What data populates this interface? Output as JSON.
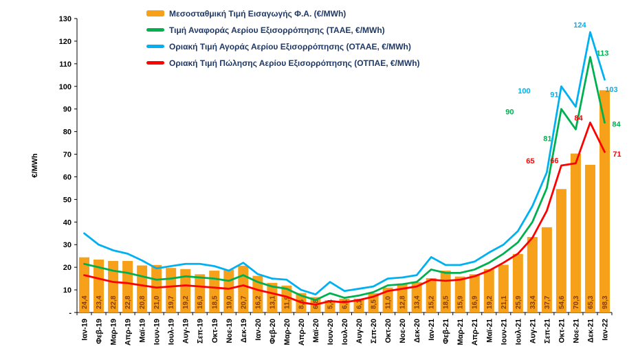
{
  "chart_data": {
    "type": "bar+line",
    "title": "",
    "ylabel": "€/MWh",
    "ylim": [
      0,
      130
    ],
    "grid": false,
    "legend_position": "top-left-inside",
    "y_tick_labels": [
      "-",
      "10",
      "20",
      "30",
      "40",
      "50",
      "60",
      "70",
      "80",
      "90",
      "100",
      "110",
      "120",
      "130"
    ],
    "categories": [
      "Ιαν-19",
      "Φεβ-19",
      "Μαρ-19",
      "Απρ-19",
      "Μαϊ-19",
      "Ιουν-19",
      "Ιουλ-19",
      "Αυγ-19",
      "Σεπ-19",
      "Οκτ-19",
      "Νοε-19",
      "Δεκ-19",
      "Ιαν-20",
      "Φεβ-20",
      "Μαρ-20",
      "Απρ-20",
      "Μαϊ-20",
      "Ιουν-20",
      "Ιουλ-20",
      "Αυγ-20",
      "Σεπ-20",
      "Οκτ-20",
      "Νοε-20",
      "Δεκ-20",
      "Ιαν-21",
      "Φεβ-21",
      "Μαρ-21",
      "Απρ-21",
      "Μαϊ-21",
      "Ιουν-21",
      "Ιουλ-21",
      "Αυγ-21",
      "Σεπ-21",
      "Οκτ-21",
      "Νοε-21",
      "Δεκ-21",
      "Ιαν-22"
    ],
    "bar_series": {
      "name": "Μεσοσταθμική Τιμή Εισαγωγής Φ.Α. (€/MWh)",
      "color": "#F7A11A",
      "label_color": "#843C0C",
      "values": [
        24.4,
        23.4,
        22.8,
        22.8,
        20.8,
        21.0,
        19.7,
        19.2,
        16.9,
        18.5,
        19.0,
        20.7,
        16.2,
        13.1,
        11.9,
        8.6,
        6.8,
        5.4,
        6.1,
        6.1,
        8.5,
        11.0,
        12.8,
        13.4,
        15.2,
        18.5,
        15.9,
        16.9,
        19.2,
        21.1,
        25.9,
        33.4,
        37.7,
        54.6,
        70.3,
        65.3,
        98.3
      ],
      "labels": [
        "24,4",
        "23,4",
        "22,8",
        "22,8",
        "20,8",
        "21,0",
        "19,7",
        "19,2",
        "16,9",
        "18,5",
        "19,0",
        "20,7",
        "16,2",
        "13,1",
        "11,9",
        "8,6",
        "6,8",
        "5,4",
        "6,1",
        "6,1",
        "8,5",
        "11,0",
        "12,8",
        "13,4",
        "15,2",
        "18,5",
        "15,9",
        "16,9",
        "19,2",
        "21,1",
        "25,9",
        "33,4",
        "37,7",
        "54,6",
        "70,3",
        "65,3",
        "98,3"
      ]
    },
    "line_series": [
      {
        "name": "Τιμή Αναφοράς Αερίου Εξισορρόπησης (ΤΑΑΕ, €/MWh)",
        "color": "#00B050",
        "values": [
          21.5,
          20,
          18.5,
          17.5,
          16,
          14.5,
          15,
          16,
          15.5,
          15,
          14,
          16.5,
          13.5,
          11.5,
          10.5,
          7.5,
          5.5,
          8.5,
          6.5,
          7.5,
          9,
          12,
          12.5,
          13.5,
          19,
          17.5,
          17.5,
          19,
          22,
          26,
          31,
          40,
          55,
          90,
          81,
          113,
          84
        ],
        "point_labels": {
          "33": "90",
          "34": "81",
          "35": "113",
          "36": "84"
        }
      },
      {
        "name": "Οριακή Τιμή Αγοράς Αερίου Εξισορρόπησης  (ΟΤΑΑΕ, €/MWh)",
        "color": "#00B0F0",
        "values": [
          35,
          30,
          27.5,
          26,
          23,
          19.5,
          20.5,
          21.5,
          21.5,
          20.5,
          18.5,
          22,
          17,
          15,
          14.5,
          10,
          8,
          13.5,
          9.5,
          10.5,
          11.5,
          15,
          15.5,
          16.5,
          24.5,
          21,
          21,
          22.5,
          26.5,
          30,
          36,
          47,
          62,
          100,
          91,
          124,
          103
        ],
        "point_labels": {
          "33": "100",
          "34": "91",
          "35": "124",
          "36": "103"
        }
      },
      {
        "name": "Οριακή Τιμή Πώλησης Αερίου Εξισορρόπησης (ΟΤΠΑΕ, €/MWh)",
        "color": "#FF0000",
        "values": [
          16.5,
          15,
          13.5,
          13,
          12,
          11,
          11.5,
          12,
          11.5,
          11,
          10.5,
          12,
          10,
          8.5,
          7,
          4.5,
          3.5,
          5,
          4.5,
          5.5,
          7,
          9.5,
          10.5,
          11.5,
          14.5,
          14,
          14.5,
          16,
          18.5,
          22,
          26,
          33,
          45,
          65,
          66,
          84,
          71
        ],
        "point_labels": {
          "33": "65",
          "34": "66",
          "35": "84",
          "36": "71"
        }
      }
    ],
    "legend": [
      {
        "label": "Μεσοσταθμική Τιμή Εισαγωγής Φ.Α. (€/MWh)",
        "color": "#F7A11A",
        "swatch": "bar"
      },
      {
        "label": "Τιμή Αναφοράς Αερίου Εξισορρόπησης (ΤΑΑΕ, €/MWh)",
        "color": "#00B050",
        "swatch": "line"
      },
      {
        "label": "Οριακή Τιμή Αγοράς Αερίου Εξισορρόπησης  (ΟΤΑΑΕ, €/MWh)",
        "color": "#00B0F0",
        "swatch": "line"
      },
      {
        "label": "Οριακή Τιμή Πώλησης Αερίου Εξισορρόπησης (ΟΤΠΑΕ, €/MWh)",
        "color": "#FF0000",
        "swatch": "line"
      }
    ],
    "colors": {
      "axis": "#000000",
      "tick_label": "#000000",
      "legend_text": "#1F3864",
      "background": "#FFFFFF"
    }
  }
}
